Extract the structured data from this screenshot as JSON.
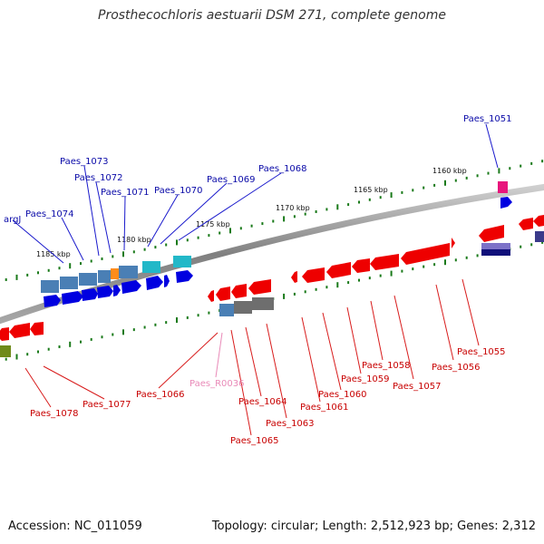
{
  "title": "Prosthecochloris aestuarii DSM 271, complete genome",
  "footer": {
    "accession": "Accession: NC_011059",
    "topology": "Topology: circular; Length: 2,512,923 bp; Genes: 2,312"
  },
  "colors": {
    "forward_strand": "#0000e0",
    "reverse_strand": "#ee0000",
    "rna": "#e98ab8",
    "backbone": "#888888",
    "tick": "#1a7a1a"
  },
  "scale_labels": [
    "1185 kbp",
    "1180 kbp",
    "1175 kbp",
    "1170 kbp",
    "1165 kbp",
    "1160 kbp"
  ],
  "forward_genes": [
    "argJ",
    "Paes_1074",
    "Paes_1073",
    "Paes_1072",
    "Paes_1071",
    "Paes_1070",
    "Paes_1069",
    "Paes_1068",
    "Paes_1051"
  ],
  "reverse_genes": [
    "Paes_1078",
    "Paes_1077",
    "Paes_1066",
    "Paes_R0036",
    "Paes_1065",
    "Paes_1064",
    "Paes_1063",
    "Paes_1061",
    "Paes_1060",
    "Paes_1059",
    "Paes_1058",
    "Paes_1057",
    "Paes_1056",
    "Paes_1055"
  ]
}
